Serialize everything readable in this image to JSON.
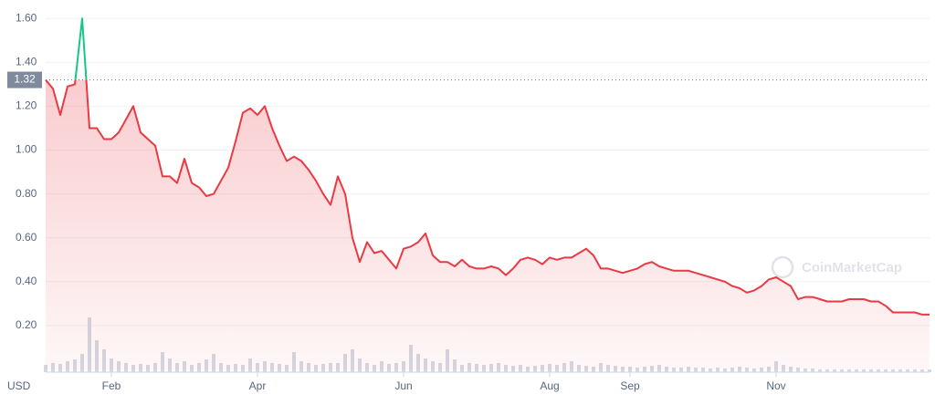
{
  "chart_data": {
    "type": "line",
    "categories": [
      null,
      null,
      null,
      null,
      null,
      null,
      null,
      null,
      null,
      "Feb",
      null,
      null,
      null,
      null,
      null,
      null,
      null,
      null,
      null,
      null,
      null,
      null,
      null,
      null,
      null,
      null,
      null,
      null,
      null,
      "Apr",
      null,
      null,
      null,
      null,
      null,
      null,
      null,
      null,
      null,
      null,
      null,
      null,
      null,
      null,
      null,
      null,
      null,
      null,
      null,
      "Jun",
      null,
      null,
      null,
      null,
      null,
      null,
      null,
      null,
      null,
      null,
      null,
      null,
      null,
      null,
      null,
      null,
      null,
      null,
      null,
      "Aug",
      null,
      null,
      null,
      null,
      null,
      null,
      null,
      null,
      null,
      null,
      "Sep",
      null,
      null,
      null,
      null,
      null,
      null,
      null,
      null,
      null,
      null,
      null,
      null,
      null,
      null,
      null,
      null,
      null,
      null,
      null,
      "Nov",
      null,
      null,
      null,
      null,
      null,
      null,
      null,
      null,
      null,
      null,
      null,
      null,
      null,
      null,
      null,
      null,
      null,
      null,
      null,
      null,
      null
    ],
    "series": [
      {
        "values": [
          1.32,
          1.28,
          1.16,
          1.29,
          1.3,
          1.6,
          1.1,
          1.1,
          1.05,
          1.05,
          1.08,
          1.14,
          1.2,
          1.08,
          1.05,
          1.02,
          0.88,
          0.88,
          0.85,
          0.96,
          0.85,
          0.83,
          0.79,
          0.8,
          0.86,
          0.92,
          1.04,
          1.17,
          1.19,
          1.16,
          1.2,
          1.1,
          1.02,
          0.95,
          0.97,
          0.95,
          0.91,
          0.86,
          0.8,
          0.75,
          0.88,
          0.8,
          0.6,
          0.49,
          0.58,
          0.53,
          0.54,
          0.5,
          0.46,
          0.55,
          0.56,
          0.58,
          0.62,
          0.52,
          0.49,
          0.49,
          0.47,
          0.5,
          0.47,
          0.46,
          0.46,
          0.47,
          0.46,
          0.43,
          0.46,
          0.5,
          0.51,
          0.5,
          0.48,
          0.51,
          0.5,
          0.51,
          0.51,
          0.53,
          0.55,
          0.52,
          0.46,
          0.46,
          0.45,
          0.44,
          0.45,
          0.46,
          0.48,
          0.49,
          0.47,
          0.46,
          0.45,
          0.45,
          0.45,
          0.44,
          0.43,
          0.42,
          0.41,
          0.4,
          0.38,
          0.37,
          0.35,
          0.36,
          0.38,
          0.41,
          0.42,
          0.4,
          0.38,
          0.32,
          0.33,
          0.33,
          0.32,
          0.31,
          0.31,
          0.31,
          0.32,
          0.32,
          0.32,
          0.31,
          0.31,
          0.29,
          0.26,
          0.26,
          0.26,
          0.26,
          0.25,
          0.25
        ],
        "color": "#ea3943",
        "color_above": "#16c784"
      }
    ],
    "volume": {
      "color": "#d3d9e3",
      "ylim": [
        0,
        60
      ],
      "values": [
        8,
        10,
        9,
        12,
        14,
        20,
        60,
        35,
        25,
        15,
        12,
        10,
        8,
        9,
        8,
        10,
        22,
        15,
        10,
        12,
        8,
        10,
        14,
        20,
        10,
        8,
        9,
        8,
        15,
        10,
        12,
        10,
        9,
        8,
        22,
        12,
        10,
        8,
        9,
        10,
        10,
        20,
        25,
        15,
        10,
        8,
        12,
        9,
        10,
        12,
        30,
        20,
        15,
        12,
        10,
        25,
        14,
        8,
        10,
        9,
        8,
        9,
        10,
        8,
        7,
        8,
        6,
        7,
        8,
        9,
        8,
        10,
        12,
        8,
        7,
        6,
        10,
        8,
        7,
        6,
        6,
        5,
        6,
        7,
        8,
        6,
        5,
        5,
        6,
        5,
        5,
        4,
        5,
        4,
        5,
        6,
        5,
        4,
        5,
        6,
        12,
        8,
        6,
        5,
        4,
        4,
        3,
        3,
        3,
        3,
        3,
        3,
        3,
        3,
        3,
        3,
        3,
        3,
        3,
        3,
        3,
        3
      ]
    },
    "baseline": 1.32,
    "currency": "USD",
    "watermark": "CoinMarketCap",
    "ylim": [
      0,
      1.68
    ],
    "yticks": [
      {
        "value": 0.2,
        "label": "0.20"
      },
      {
        "value": 0.4,
        "label": "0.40"
      },
      {
        "value": 0.6,
        "label": "0.60"
      },
      {
        "value": 0.8,
        "label": "0.80"
      },
      {
        "value": 1.0,
        "label": "1.00"
      },
      {
        "value": 1.2,
        "label": "1.20"
      },
      {
        "value": 1.4,
        "label": "1.40"
      },
      {
        "value": 1.6,
        "label": "1.60"
      }
    ],
    "grid": true
  }
}
